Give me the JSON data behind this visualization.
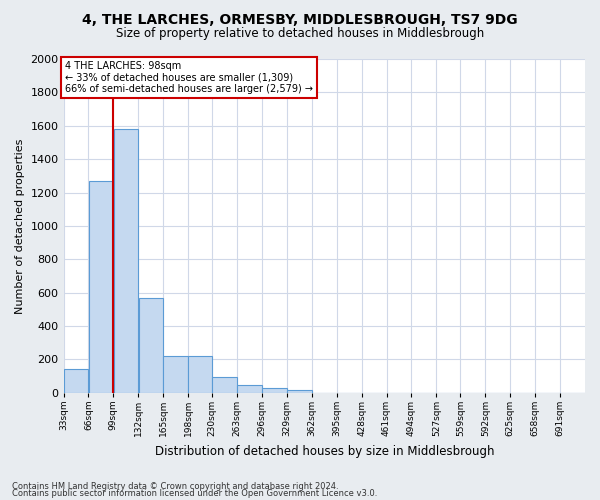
{
  "title": "4, THE LARCHES, ORMESBY, MIDDLESBROUGH, TS7 9DG",
  "subtitle": "Size of property relative to detached houses in Middlesbrough",
  "xlabel": "Distribution of detached houses by size in Middlesbrough",
  "ylabel": "Number of detached properties",
  "footnote1": "Contains HM Land Registry data © Crown copyright and database right 2024.",
  "footnote2": "Contains public sector information licensed under the Open Government Licence v3.0.",
  "bar_color": "#c5d9f0",
  "bar_edge_color": "#5b9bd5",
  "annotation_line_color": "#cc0000",
  "annotation_box_color": "#cc0000",
  "annotation_text_color": "#000000",
  "annotation_line": "4 THE LARCHES: 98sqm",
  "annotation_line2": "← 33% of detached houses are smaller (1,309)",
  "annotation_line3": "66% of semi-detached houses are larger (2,579) →",
  "subject_sqm": 98,
  "bin_labels": [
    "33sqm",
    "66sqm",
    "99sqm",
    "132sqm",
    "165sqm",
    "198sqm",
    "230sqm",
    "263sqm",
    "296sqm",
    "329sqm",
    "362sqm",
    "395sqm",
    "428sqm",
    "461sqm",
    "494sqm",
    "527sqm",
    "559sqm",
    "592sqm",
    "625sqm",
    "658sqm",
    "691sqm"
  ],
  "bin_edges": [
    33,
    66,
    99,
    132,
    165,
    198,
    230,
    263,
    296,
    329,
    362,
    395,
    428,
    461,
    494,
    527,
    559,
    592,
    625,
    658,
    691,
    724
  ],
  "bar_heights": [
    140,
    1270,
    1580,
    570,
    220,
    220,
    95,
    50,
    28,
    15,
    0,
    0,
    0,
    0,
    0,
    0,
    0,
    0,
    0,
    0,
    0
  ],
  "ylim": [
    0,
    2000
  ],
  "yticks": [
    0,
    200,
    400,
    600,
    800,
    1000,
    1200,
    1400,
    1600,
    1800,
    2000
  ],
  "fig_bg_color": "#e8ecf0",
  "plot_bg_color": "#ffffff",
  "grid_color": "#d0d8e8"
}
